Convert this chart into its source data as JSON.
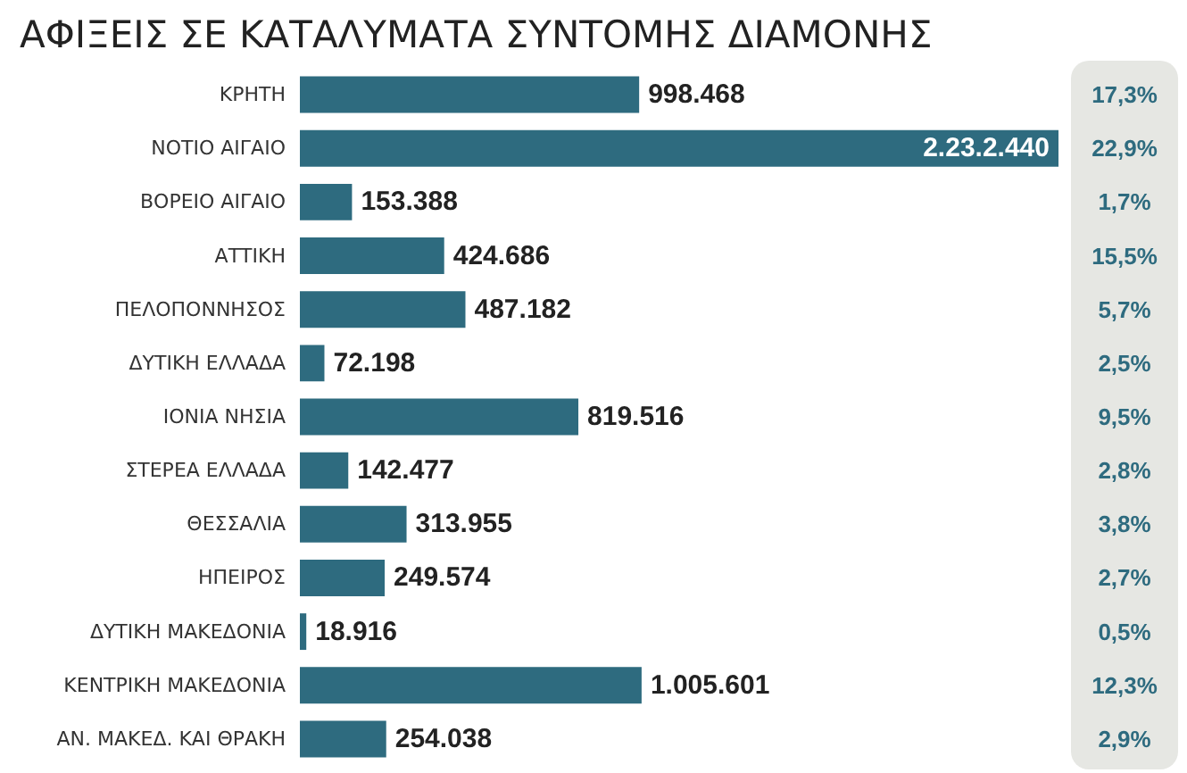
{
  "chart_data": {
    "type": "bar",
    "orientation": "horizontal",
    "title": "ΑΦΙΞΕΙΣ ΣΕ ΚΑΤΑΛΥΜΑΤΑ ΣΥΝΤΟΜΗΣ ΔΙΑΜΟΝΗΣ",
    "categories": [
      "ΚΡΗΤΗ",
      "ΝΟΤΙΟ ΑΙΓΑΙΟ",
      "ΒΟΡΕΙΟ ΑΙΓΑΙΟ",
      "ΑΤΤΙΚΗ",
      "ΠΕΛΟΠΟΝΝΗΣΟΣ",
      "ΔΥΤΙΚΗ ΕΛΛΑΔΑ",
      "ΙΟΝΙΑ ΝΗΣΙΑ",
      "ΣΤΕΡΕΑ ΕΛΛΑΔΑ",
      "ΘΕΣΣΑΛΙΑ",
      "ΗΠΕΙΡΟΣ",
      "ΔΥΤΙΚΗ ΜΑΚΕΔΟΝΙΑ",
      "ΚΕΝΤΡΙΚΗ ΜΑΚΕΔΟΝΙΑ",
      "ΑΝ. ΜΑΚΕΔ. ΚΑΙ ΘΡΑΚΗ"
    ],
    "values": [
      998468,
      2232440,
      153388,
      424686,
      487182,
      72198,
      819516,
      142477,
      313955,
      249574,
      18916,
      1005601,
      254038
    ],
    "value_labels": [
      "998.468",
      "2.23.2.440",
      "153.388",
      "424.686",
      "487.182",
      "72.198",
      "819.516",
      "142.477",
      "313.955",
      "249.574",
      "18.916",
      "1.005.601",
      "254.038"
    ],
    "color": "#2e6b7f",
    "annotations": [
      "17,3%",
      "22,9%",
      "1,7%",
      "15,5%",
      "5,7%",
      "2,5%",
      "9,5%",
      "2,8%",
      "3,8%",
      "2,7%",
      "0,5%",
      "12,3%",
      "2,9%"
    ]
  }
}
